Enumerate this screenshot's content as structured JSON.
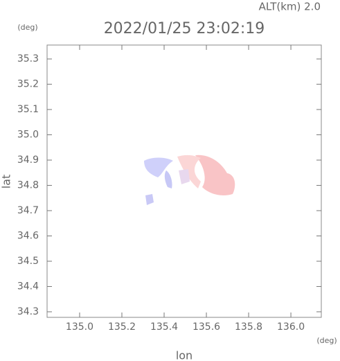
{
  "chart_data": {
    "type": "map",
    "title": "2022/01/25 23:02:19",
    "subtitle": "ALT(km)  2.0",
    "x_label": "lon",
    "y_label": "lat",
    "x_unit": "(deg)",
    "y_unit": "(deg)",
    "xlim": [
      134.846,
      136.144
    ],
    "ylim": [
      34.278,
      35.355
    ],
    "xticks": [
      {
        "value": 135,
        "label": "135.0"
      },
      135.2,
      135.4,
      135.6,
      135.8,
      {
        "value": 136,
        "label": "136.0"
      }
    ],
    "yticks": [
      35.3,
      35.2,
      35.1,
      {
        "value": 35,
        "label": "35.0"
      },
      34.9,
      34.8,
      34.7,
      34.6,
      34.5,
      34.4,
      34.3
    ]
  }
}
